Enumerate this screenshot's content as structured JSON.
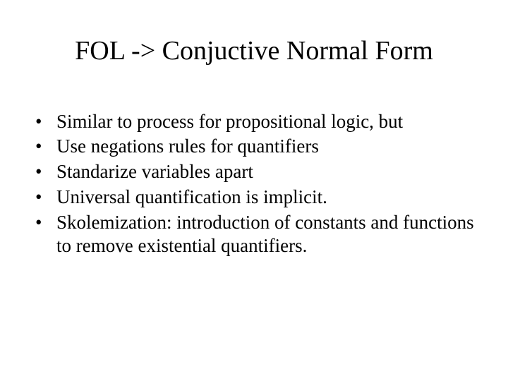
{
  "slide": {
    "title": "FOL -> Conjuctive Normal Form",
    "title_fontsize": 38,
    "title_color": "#000000",
    "body_fontsize": 27,
    "body_color": "#000000",
    "background_color": "#ffffff",
    "bullets": [
      "Similar to process for propositional logic, but",
      "Use negations rules for quantifiers",
      "Standarize variables apart",
      "Universal quantification is implicit.",
      "Skolemization: introduction of constants and functions to remove existential quantifiers."
    ]
  }
}
